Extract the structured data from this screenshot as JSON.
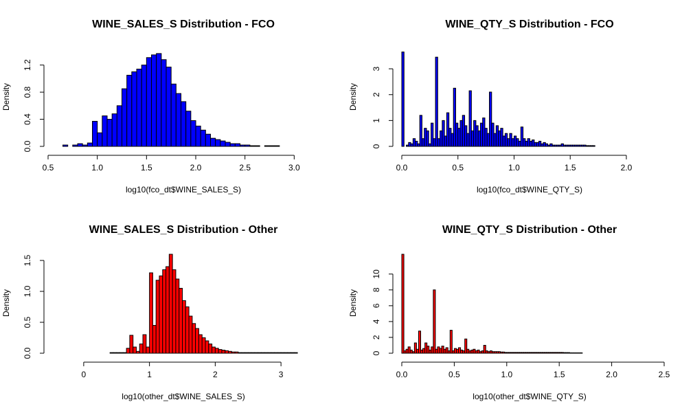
{
  "chart_data": [
    {
      "type": "bar",
      "title": "WINE_SALES_S Distribution - FCO",
      "xlabel": "log10(fco_dt$WINE_SALES_S)",
      "ylabel": "Density",
      "fill": "#0000ff",
      "xlim": [
        0.5,
        3.2
      ],
      "ylim": [
        0,
        1.45
      ],
      "xticks": [
        0.5,
        1.0,
        1.5,
        2.0,
        2.5,
        3.0
      ],
      "xtick_labels": [
        "0.5",
        "1.0",
        "1.5",
        "2.0",
        "2.5",
        "3.0"
      ],
      "yticks": [
        0.0,
        0.4,
        0.8,
        1.2
      ],
      "ytick_labels": [
        "0.0",
        "0.4",
        "0.8",
        "1.2"
      ],
      "bins": {
        "start": 0.55,
        "width": 0.05,
        "values": [
          0.0,
          0.0,
          0.02,
          0.0,
          0.02,
          0.04,
          0.02,
          0.05,
          0.37,
          0.2,
          0.45,
          0.4,
          0.48,
          0.6,
          0.85,
          1.05,
          1.1,
          1.14,
          1.2,
          1.31,
          1.35,
          1.37,
          1.28,
          1.17,
          0.92,
          0.78,
          0.66,
          0.52,
          0.38,
          0.3,
          0.24,
          0.18,
          0.12,
          0.1,
          0.08,
          0.06,
          0.04,
          0.04,
          0.02,
          0.02,
          0.01,
          0.01,
          0.0,
          0.01,
          0.01,
          0.01
        ]
      }
    },
    {
      "type": "bar",
      "title": "WINE_QTY_S Distribution - FCO",
      "xlabel": "log10(fco_dt$WINE_QTY_S)",
      "ylabel": "Density",
      "fill": "#0000ff",
      "xlim": [
        0,
        2.3
      ],
      "ylim": [
        0,
        3.8
      ],
      "xticks": [
        0.0,
        0.5,
        1.0,
        1.5,
        2.0
      ],
      "xtick_labels": [
        "0.0",
        "0.5",
        "1.0",
        "1.5",
        "2.0"
      ],
      "yticks": [
        0,
        1,
        2,
        3
      ],
      "ytick_labels": [
        "0",
        "1",
        "2",
        "3"
      ],
      "bins": {
        "start": 0.0,
        "width": 0.02,
        "values": [
          3.65,
          0.0,
          0.05,
          0.15,
          0.1,
          0.3,
          0.2,
          0.1,
          1.2,
          0.3,
          0.7,
          0.6,
          0.1,
          0.9,
          0.3,
          3.45,
          0.3,
          0.6,
          1.0,
          0.4,
          1.3,
          0.7,
          0.5,
          2.25,
          0.9,
          0.7,
          1.0,
          1.2,
          0.8,
          0.5,
          2.15,
          0.6,
          1.0,
          0.8,
          0.6,
          0.9,
          1.1,
          0.7,
          0.5,
          2.1,
          0.9,
          0.5,
          0.8,
          0.6,
          0.7,
          0.4,
          0.5,
          0.3,
          0.5,
          0.3,
          0.4,
          0.3,
          0.2,
          0.75,
          0.3,
          0.2,
          0.3,
          0.2,
          0.25,
          0.15,
          0.15,
          0.2,
          0.1,
          0.15,
          0.1,
          0.05,
          0.1,
          0.05,
          0.05,
          0.05,
          0.05,
          0.1,
          0.05,
          0.05,
          0.05,
          0.05,
          0.05,
          0.05,
          0.05,
          0.05,
          0.05,
          0.05,
          0.03,
          0.03,
          0.03,
          0.03
        ]
      }
    },
    {
      "type": "bar",
      "title": "WINE_SALES_S Distribution - Other",
      "xlabel": "log10(other_dt$WINE_SALES_S)",
      "ylabel": "Density",
      "fill": "#ff0000",
      "xlim": [
        -0.5,
        3.5
      ],
      "ylim": [
        0,
        1.6
      ],
      "xticks": [
        0,
        1,
        2,
        3
      ],
      "xtick_labels": [
        "0",
        "1",
        "2",
        "3"
      ],
      "yticks": [
        0.0,
        0.5,
        1.0,
        1.5
      ],
      "ytick_labels": [
        "0.0",
        "0.5",
        "1.0",
        "1.5"
      ],
      "bins": {
        "start": 0.4,
        "width": 0.05,
        "values": [
          0.01,
          0.01,
          0.01,
          0.01,
          0.01,
          0.08,
          0.29,
          0.1,
          0.03,
          0.15,
          0.3,
          0.1,
          1.3,
          0.45,
          1.18,
          1.25,
          1.35,
          1.4,
          1.6,
          1.35,
          1.2,
          1.05,
          0.85,
          0.75,
          0.6,
          0.48,
          0.4,
          0.3,
          0.25,
          0.2,
          0.15,
          0.1,
          0.08,
          0.06,
          0.05,
          0.04,
          0.03,
          0.02,
          0.02,
          0.01,
          0.01,
          0.01,
          0.01,
          0.01,
          0.01,
          0.01,
          0.01,
          0.01,
          0.01,
          0.01,
          0.01,
          0.01,
          0.01,
          0.01,
          0.01,
          0.01,
          0.01
        ]
      }
    },
    {
      "type": "bar",
      "title": "WINE_QTY_S Distribution - Other",
      "xlabel": "log10(other_dt$WINE_QTY_S)",
      "ylabel": "Density",
      "fill": "#ff0000",
      "xlim": [
        0,
        2.5
      ],
      "ylim": [
        0,
        12.5
      ],
      "xticks": [
        0.0,
        0.5,
        1.0,
        1.5,
        2.0,
        2.5
      ],
      "xtick_labels": [
        "0.0",
        "0.5",
        "1.0",
        "1.5",
        "2.0",
        "2.5"
      ],
      "yticks": [
        0,
        2,
        4,
        6,
        8,
        10
      ],
      "ytick_labels": [
        "0",
        "2",
        "4",
        "6",
        "8",
        "10"
      ],
      "bins": {
        "start": 0.0,
        "width": 0.02,
        "values": [
          12.5,
          0.3,
          0.5,
          0.8,
          0.4,
          0.2,
          1.3,
          0.5,
          2.8,
          0.4,
          0.6,
          1.3,
          0.9,
          0.4,
          0.8,
          8.0,
          0.5,
          0.8,
          0.6,
          0.9,
          0.5,
          0.7,
          0.3,
          2.9,
          0.3,
          0.6,
          0.5,
          0.7,
          0.4,
          0.3,
          1.8,
          0.5,
          0.3,
          0.4,
          0.5,
          0.3,
          0.4,
          0.2,
          0.3,
          1.0,
          0.3,
          0.2,
          0.3,
          0.2,
          0.2,
          0.2,
          0.2,
          0.15,
          0.15,
          0.1,
          0.1,
          0.1,
          0.1,
          0.1,
          0.1,
          0.1,
          0.1,
          0.1,
          0.1,
          0.1,
          0.1,
          0.1,
          0.1,
          0.1,
          0.1,
          0.1,
          0.1,
          0.1,
          0.1,
          0.1,
          0.1,
          0.1,
          0.1,
          0.1,
          0.1,
          0.1,
          0.1,
          0.08,
          0.08,
          0.08,
          0.05,
          0.05,
          0.05,
          0.05,
          0.05,
          0.05
        ]
      }
    }
  ]
}
